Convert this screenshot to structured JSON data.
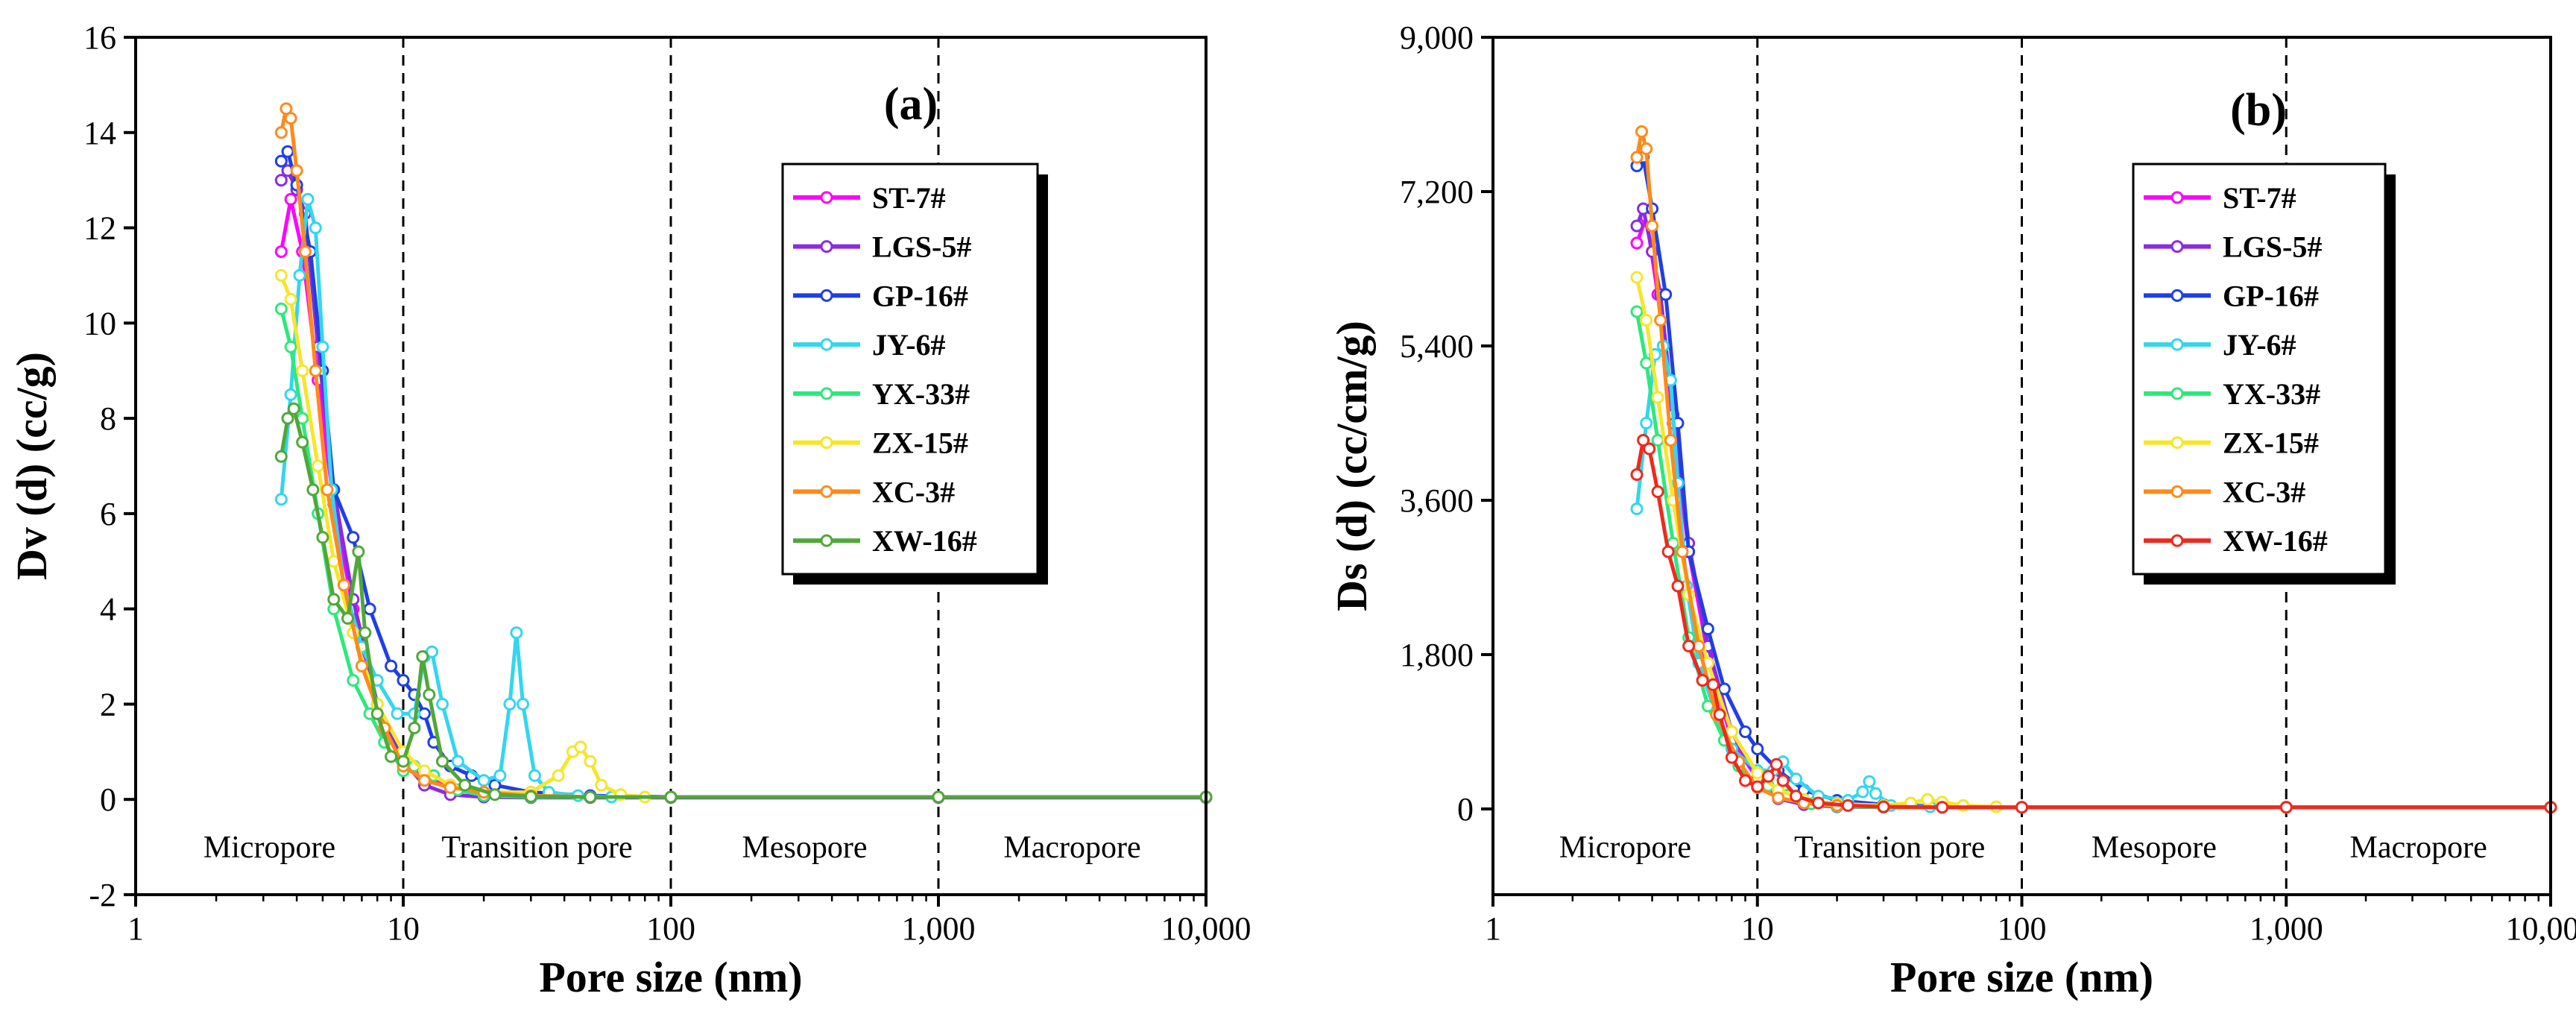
{
  "chart_data": [
    {
      "type": "line",
      "panel": "(a)",
      "xscale": "log",
      "xlabel": "Pore size (nm)",
      "ylabel": "Dv (d) (cc/g)",
      "xlim": [
        1,
        10000
      ],
      "ylim": [
        -2,
        16
      ],
      "xticks": [
        1,
        10,
        100,
        1000,
        10000
      ],
      "xtick_labels": [
        "1",
        "10",
        "100",
        "1,000",
        "10,000"
      ],
      "yticks": [
        -2,
        0,
        2,
        4,
        6,
        8,
        10,
        12,
        14,
        16
      ],
      "ytick_labels": [
        "-2",
        "0",
        "2",
        "4",
        "6",
        "8",
        "10",
        "12",
        "14",
        "16"
      ],
      "dividers": [
        10,
        100,
        1000
      ],
      "regions": [
        "Micropore",
        "Transition pore",
        "Mesopore",
        "Macropore"
      ],
      "legend": "top-right",
      "series": [
        {
          "name": "ST-7#",
          "color": "#ff00ff",
          "x": [
            3.5,
            3.8,
            4.2,
            4.8,
            5.5,
            6.5,
            8,
            10,
            12,
            15,
            20,
            30,
            50,
            100,
            1000,
            10000
          ],
          "y": [
            11.5,
            12.6,
            11.5,
            8.8,
            6.2,
            4.0,
            1.8,
            0.8,
            0.5,
            0.3,
            0.15,
            0.08,
            0.06,
            0.05,
            0.05,
            0.05
          ]
        },
        {
          "name": "LGS-5#",
          "color": "#8a2be2",
          "x": [
            3.5,
            3.7,
            4.0,
            4.3,
            4.8,
            5.5,
            6.5,
            8,
            10,
            12,
            15,
            20,
            30,
            50,
            100,
            1000,
            10000
          ],
          "y": [
            13.0,
            13.2,
            12.8,
            12.3,
            9.5,
            6.5,
            4.2,
            2.0,
            0.8,
            0.3,
            0.1,
            0.05,
            0.04,
            0.04,
            0.04,
            0.04,
            0.04
          ]
        },
        {
          "name": "GP-16#",
          "color": "#1f3fe6",
          "x": [
            3.5,
            3.7,
            4.0,
            4.5,
            5.0,
            5.5,
            6.5,
            7.5,
            9,
            10,
            11,
            12,
            13,
            15,
            18,
            22,
            30,
            50,
            100,
            1000,
            10000
          ],
          "y": [
            13.4,
            13.6,
            12.9,
            11.5,
            9.0,
            6.5,
            5.5,
            4.0,
            2.8,
            2.5,
            2.2,
            1.8,
            1.2,
            0.7,
            0.5,
            0.3,
            0.15,
            0.08,
            0.05,
            0.05,
            0.05
          ]
        },
        {
          "name": "JY-6#",
          "color": "#33d6ee",
          "x": [
            3.5,
            3.8,
            4.1,
            4.4,
            4.7,
            5.0,
            5.4,
            6.0,
            7,
            8,
            9.5,
            11,
            12,
            12.8,
            14,
            16,
            20,
            23,
            25,
            26.5,
            28,
            31,
            35,
            45,
            60,
            100,
            1000,
            10000
          ],
          "y": [
            6.3,
            8.5,
            11.0,
            12.6,
            12.0,
            9.5,
            6.5,
            4.5,
            3.2,
            2.5,
            1.8,
            1.8,
            3.0,
            3.1,
            2.0,
            0.8,
            0.4,
            0.5,
            2.0,
            3.5,
            2.0,
            0.5,
            0.15,
            0.08,
            0.05,
            0.05,
            0.05,
            0.05
          ]
        },
        {
          "name": "YX-33#",
          "color": "#2ee87c",
          "x": [
            3.5,
            3.8,
            4.2,
            4.8,
            5.5,
            6.5,
            7.5,
            8.5,
            10,
            11,
            13,
            16,
            20,
            30,
            50,
            100,
            1000,
            10000
          ],
          "y": [
            10.3,
            9.5,
            8.0,
            6.0,
            4.0,
            2.5,
            1.8,
            1.2,
            0.6,
            0.7,
            0.5,
            0.2,
            0.08,
            0.05,
            0.05,
            0.05,
            0.05,
            0.05
          ]
        },
        {
          "name": "ZX-15#",
          "color": "#f5e62a",
          "x": [
            3.5,
            3.8,
            4.2,
            4.8,
            5.5,
            6.5,
            8,
            10,
            12,
            15,
            20,
            30,
            38,
            43,
            46,
            50,
            55,
            65,
            80,
            100,
            1000,
            10000
          ],
          "y": [
            11.0,
            10.5,
            9.0,
            7.0,
            5.0,
            3.5,
            2.0,
            1.0,
            0.6,
            0.3,
            0.15,
            0.15,
            0.5,
            1.0,
            1.1,
            0.8,
            0.3,
            0.1,
            0.05,
            0.05,
            0.05,
            0.05
          ]
        },
        {
          "name": "XC-3#",
          "color": "#ff8a1a",
          "x": [
            3.5,
            3.65,
            3.8,
            4.0,
            4.3,
            4.7,
            5.2,
            6.0,
            7.0,
            8.5,
            10,
            12,
            15,
            20,
            30,
            50,
            100,
            1000,
            10000
          ],
          "y": [
            14.0,
            14.5,
            14.3,
            13.2,
            11.5,
            9.0,
            6.5,
            4.5,
            2.8,
            1.5,
            0.7,
            0.4,
            0.25,
            0.15,
            0.08,
            0.05,
            0.05,
            0.05,
            0.05
          ]
        },
        {
          "name": "XW-16#",
          "color": "#4fa838",
          "x": [
            3.5,
            3.7,
            3.9,
            4.2,
            4.6,
            5.0,
            5.5,
            6.2,
            6.8,
            7.2,
            8,
            9,
            10,
            11,
            11.8,
            12.5,
            14,
            17,
            22,
            30,
            50,
            100,
            1000,
            10000
          ],
          "y": [
            7.2,
            8.0,
            8.2,
            7.5,
            6.5,
            5.5,
            4.2,
            3.8,
            5.2,
            3.5,
            1.8,
            0.9,
            0.8,
            1.5,
            3.0,
            2.2,
            0.8,
            0.3,
            0.1,
            0.06,
            0.05,
            0.05,
            0.05,
            0.05
          ]
        }
      ]
    },
    {
      "type": "line",
      "panel": "(b)",
      "xscale": "log",
      "xlabel": "Pore size (nm)",
      "ylabel": "Ds (d) (cc/cm/g)",
      "xlim": [
        1,
        10000
      ],
      "ylim": [
        -1000,
        9000
      ],
      "xticks": [
        1,
        10,
        100,
        1000,
        10000
      ],
      "xtick_labels": [
        "1",
        "10",
        "100",
        "1,000",
        "10,000"
      ],
      "yticks": [
        0,
        1800,
        3600,
        5400,
        7200,
        9000
      ],
      "ytick_labels": [
        "0",
        "1,800",
        "3,600",
        "5,400",
        "7,200",
        "9,000"
      ],
      "dividers": [
        10,
        100,
        1000
      ],
      "regions": [
        "Micropore",
        "Transition pore",
        "Mesopore",
        "Macropore"
      ],
      "legend": "top-right",
      "series": [
        {
          "name": "ST-7#",
          "color": "#ff00ff",
          "x": [
            3.5,
            3.8,
            4.2,
            4.8,
            5.5,
            6.5,
            8,
            10,
            12,
            15,
            20,
            30,
            50,
            100,
            1000,
            10000
          ],
          "y": [
            6600,
            6900,
            6000,
            4500,
            3000,
            1800,
            800,
            350,
            180,
            90,
            50,
            30,
            25,
            20,
            20,
            20
          ]
        },
        {
          "name": "LGS-5#",
          "color": "#8a2be2",
          "x": [
            3.5,
            3.7,
            4.0,
            4.3,
            4.8,
            5.5,
            6.5,
            8,
            10,
            12,
            15,
            20,
            30,
            50,
            100,
            1000,
            10000
          ],
          "y": [
            6800,
            7000,
            6500,
            6000,
            4600,
            3100,
            1900,
            900,
            350,
            120,
            50,
            25,
            20,
            20,
            20,
            20,
            20
          ]
        },
        {
          "name": "GP-16#",
          "color": "#1f3fe6",
          "x": [
            3.5,
            3.7,
            4.0,
            4.5,
            5.0,
            5.5,
            6.5,
            7.5,
            9,
            10,
            12,
            15,
            20,
            30,
            50,
            100,
            1000,
            10000
          ],
          "y": [
            7500,
            7600,
            7000,
            6000,
            4500,
            3000,
            2100,
            1400,
            900,
            700,
            450,
            220,
            100,
            50,
            30,
            20,
            20,
            20
          ]
        },
        {
          "name": "JY-6#",
          "color": "#33d6ee",
          "x": [
            3.5,
            3.8,
            4.1,
            4.4,
            4.7,
            5.0,
            5.4,
            6.0,
            7,
            8,
            10,
            11.5,
            12.5,
            14,
            17,
            22,
            25,
            26.5,
            28,
            32,
            45,
            100,
            1000,
            10000
          ],
          "y": [
            3500,
            4500,
            5300,
            5400,
            5000,
            3800,
            2600,
            1700,
            1100,
            700,
            450,
            450,
            550,
            350,
            150,
            100,
            200,
            320,
            180,
            40,
            25,
            20,
            20,
            20
          ]
        },
        {
          "name": "YX-33#",
          "color": "#2ee87c",
          "x": [
            3.5,
            3.8,
            4.2,
            4.8,
            5.5,
            6.5,
            7.5,
            8.5,
            10,
            11,
            13,
            16,
            20,
            30,
            50,
            100,
            1000,
            10000
          ],
          "y": [
            5800,
            5200,
            4300,
            3100,
            2000,
            1200,
            800,
            500,
            250,
            270,
            160,
            60,
            30,
            20,
            20,
            20,
            20,
            20
          ]
        },
        {
          "name": "ZX-15#",
          "color": "#f5e62a",
          "x": [
            3.5,
            3.8,
            4.2,
            4.8,
            5.5,
            6.5,
            8,
            10,
            12,
            15,
            20,
            30,
            38,
            44,
            50,
            60,
            80,
            100,
            1000,
            10000
          ],
          "y": [
            6200,
            5700,
            4800,
            3600,
            2500,
            1700,
            900,
            420,
            220,
            110,
            60,
            40,
            70,
            110,
            80,
            40,
            25,
            20,
            20,
            20
          ]
        },
        {
          "name": "XC-3#",
          "color": "#ff8a1a",
          "x": [
            3.5,
            3.65,
            3.8,
            4.0,
            4.3,
            4.7,
            5.2,
            6.0,
            7.0,
            8.5,
            10,
            12,
            15,
            20,
            30,
            50,
            100,
            1000,
            10000
          ],
          "y": [
            7600,
            7900,
            7700,
            6800,
            5700,
            4300,
            3000,
            1900,
            1100,
            550,
            250,
            130,
            70,
            40,
            25,
            20,
            20,
            20,
            20
          ]
        },
        {
          "name": "XW-16#",
          "color": "#f0281e",
          "x": [
            3.5,
            3.7,
            3.9,
            4.2,
            4.6,
            5.0,
            5.5,
            6.2,
            6.8,
            7.2,
            8,
            9,
            10,
            11,
            11.8,
            12.5,
            14,
            17,
            22,
            30,
            50,
            100,
            1000,
            10000
          ],
          "y": [
            3900,
            4300,
            4200,
            3700,
            3000,
            2600,
            1900,
            1500,
            1450,
            1100,
            600,
            330,
            260,
            380,
            520,
            330,
            150,
            70,
            40,
            25,
            20,
            20,
            20,
            20
          ]
        }
      ]
    }
  ]
}
